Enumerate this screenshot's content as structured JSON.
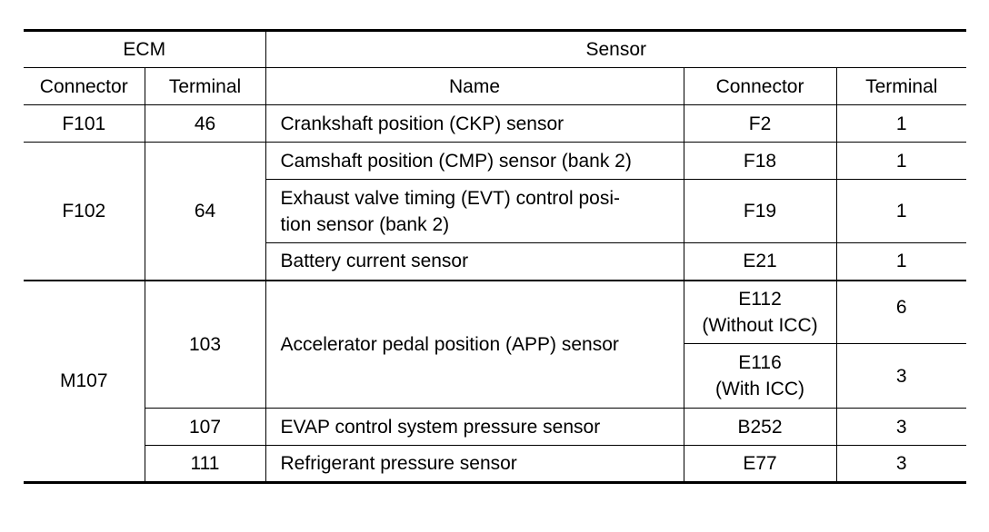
{
  "table": {
    "group_headers": {
      "ecm": "ECM",
      "sensor": "Sensor"
    },
    "column_headers": {
      "ecm_connector": "Connector",
      "ecm_terminal": "Terminal",
      "sensor_name": "Name",
      "sensor_connector": "Connector",
      "sensor_terminal": "Terminal"
    },
    "rows": [
      {
        "ecm_connector": "F101",
        "ecm_terminal": "46",
        "name": "Crankshaft position (CKP) sensor",
        "connector": "F2",
        "terminal": "1"
      },
      {
        "ecm_connector": "F102",
        "ecm_terminal": "64",
        "name": "Camshaft position (CMP) sensor (bank 2)",
        "connector": "F18",
        "terminal": "1"
      },
      {
        "name_line1": "Exhaust valve timing (EVT) control posi-",
        "name_line2": "tion sensor (bank 2)",
        "connector": "F19",
        "terminal": "1"
      },
      {
        "name": "Battery current sensor",
        "connector": "E21",
        "terminal": "1"
      },
      {
        "ecm_connector": "M107",
        "ecm_terminal": "103",
        "name": "Accelerator pedal position (APP) sensor",
        "connector_line1": "E112",
        "connector_line2": "(Without ICC)",
        "terminal": "6"
      },
      {
        "connector_line1": "E116",
        "connector_line2": "(With ICC)",
        "terminal": "3"
      },
      {
        "ecm_terminal": "107",
        "name": "EVAP control system pressure sensor",
        "connector": "B252",
        "terminal": "3"
      },
      {
        "ecm_terminal": "111",
        "name": "Refrigerant pressure sensor",
        "connector": "E77",
        "terminal": "3"
      }
    ]
  }
}
